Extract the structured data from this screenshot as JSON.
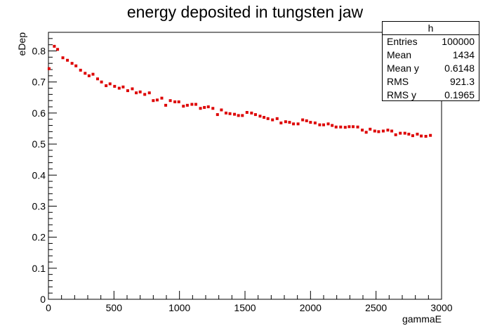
{
  "chart_data": {
    "type": "scatter",
    "title": "energy deposited in tungsten jaw",
    "xlabel": "gammaE",
    "ylabel": "eDep",
    "xlim": [
      0,
      3000
    ],
    "ylim": [
      0,
      0.86
    ],
    "xticks": [
      0,
      500,
      1000,
      1500,
      2000,
      2500,
      3000
    ],
    "yticks": [
      0,
      0.1,
      0.2,
      0.3,
      0.4,
      0.5,
      0.6,
      0.7,
      0.8
    ],
    "grid": false,
    "color": "#dd0000",
    "x": [
      5,
      45,
      70,
      110,
      145,
      180,
      210,
      245,
      280,
      310,
      340,
      375,
      405,
      440,
      470,
      505,
      540,
      570,
      605,
      640,
      670,
      700,
      735,
      770,
      800,
      830,
      865,
      895,
      930,
      965,
      995,
      1030,
      1060,
      1095,
      1125,
      1160,
      1190,
      1220,
      1255,
      1290,
      1320,
      1355,
      1385,
      1420,
      1450,
      1480,
      1515,
      1550,
      1580,
      1615,
      1645,
      1675,
      1710,
      1745,
      1775,
      1810,
      1840,
      1870,
      1905,
      1940,
      1970,
      2000,
      2035,
      2070,
      2100,
      2135,
      2165,
      2195,
      2230,
      2265,
      2295,
      2325,
      2360,
      2395,
      2425,
      2455,
      2490,
      2520,
      2555,
      2590,
      2620,
      2650,
      2685,
      2720,
      2750,
      2780,
      2815,
      2845,
      2880,
      2915
    ],
    "y": [
      0.743,
      0.815,
      0.805,
      0.778,
      0.77,
      0.76,
      0.752,
      0.738,
      0.728,
      0.72,
      0.725,
      0.71,
      0.7,
      0.688,
      0.694,
      0.686,
      0.68,
      0.684,
      0.672,
      0.678,
      0.665,
      0.668,
      0.66,
      0.665,
      0.64,
      0.642,
      0.648,
      0.625,
      0.64,
      0.636,
      0.636,
      0.622,
      0.625,
      0.628,
      0.628,
      0.615,
      0.618,
      0.62,
      0.615,
      0.595,
      0.61,
      0.6,
      0.598,
      0.596,
      0.592,
      0.592,
      0.602,
      0.6,
      0.595,
      0.59,
      0.586,
      0.582,
      0.578,
      0.582,
      0.568,
      0.572,
      0.57,
      0.565,
      0.565,
      0.578,
      0.575,
      0.57,
      0.568,
      0.562,
      0.562,
      0.565,
      0.56,
      0.555,
      0.555,
      0.554,
      0.556,
      0.556,
      0.555,
      0.545,
      0.538,
      0.548,
      0.542,
      0.54,
      0.542,
      0.545,
      0.542,
      0.53,
      0.535,
      0.535,
      0.532,
      0.527,
      0.532,
      0.526,
      0.525,
      0.528
    ]
  },
  "stats_box": {
    "name": "h",
    "rows": [
      {
        "key": "Entries",
        "value": "100000"
      },
      {
        "key": "Mean",
        "value": "1434"
      },
      {
        "key": "Mean y",
        "value": "0.6148"
      },
      {
        "key": "RMS",
        "value": "921.3"
      },
      {
        "key": "RMS y",
        "value": "0.1965"
      }
    ]
  }
}
